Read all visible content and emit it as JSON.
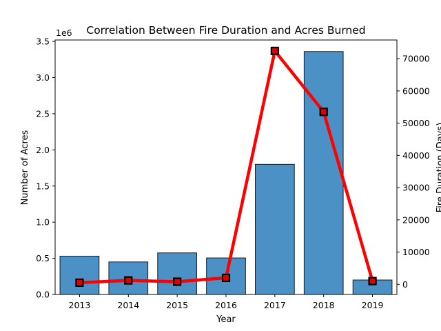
{
  "chart_data": {
    "type": "bar",
    "title": "Correlation Between Fire Duration and Acres Burned",
    "xlabel": "Year",
    "ylabel": "Number of Acres",
    "y2label": "Fire Duration (Days)",
    "y_offset_text": "1e6",
    "categories": [
      "2013",
      "2014",
      "2015",
      "2016",
      "2017",
      "2018",
      "2019"
    ],
    "ylim": [
      0,
      3520000
    ],
    "y2lim": [
      -3150,
      75800
    ],
    "yticks": [
      0,
      500000,
      1000000,
      1500000,
      2000000,
      2500000,
      3000000,
      3500000
    ],
    "ytick_labels": [
      "0.0",
      "0.5",
      "1.0",
      "1.5",
      "2.0",
      "2.5",
      "3.0",
      "3.5"
    ],
    "y2ticks": [
      0,
      10000,
      20000,
      30000,
      40000,
      50000,
      60000,
      70000
    ],
    "y2tick_labels": [
      "0",
      "10000",
      "20000",
      "30000",
      "40000",
      "50000",
      "60000",
      "70000"
    ],
    "series": [
      {
        "type": "bar",
        "axis": "left",
        "values": [
          530000,
          450000,
          575000,
          505000,
          1800000,
          3360000,
          200000
        ]
      },
      {
        "type": "line",
        "axis": "right",
        "values": [
          500,
          1200,
          800,
          2000,
          72400,
          53500,
          1000
        ]
      }
    ],
    "colors": {
      "bar_fill": "#4c91c5",
      "bar_edge": "#1a1a1a",
      "line": "#ff0000",
      "marker_fill": "#e00000",
      "marker_edge": "#000000"
    },
    "grid": false,
    "legend": "none"
  }
}
